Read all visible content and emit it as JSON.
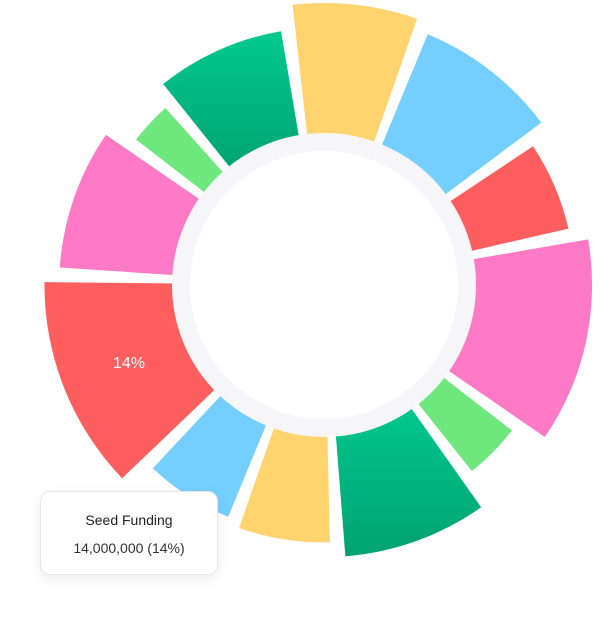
{
  "chart_data": {
    "type": "pie",
    "variant": "doughnut",
    "start_angle_deg": -8,
    "slices": [
      {
        "value": 8.5,
        "color": "#FFD36E"
      },
      {
        "value": 10,
        "color": "#74CFFF"
      },
      {
        "value": 7,
        "color": "#FF5E5E"
      },
      {
        "value": 14,
        "color": "#FF7AC6"
      },
      {
        "value": 5,
        "color": "#6EE87C"
      },
      {
        "value": 10,
        "color": "#00B17C"
      },
      {
        "value": 7,
        "color": "#FFD36E"
      },
      {
        "value": 7,
        "color": "#74CFFF"
      },
      {
        "value": 14,
        "color": "#FF5E5E",
        "label": "14%",
        "highlighted": true
      },
      {
        "value": 10,
        "color": "#FF7AC6"
      },
      {
        "value": 4,
        "color": "#6EE87C"
      },
      {
        "value": 9.5,
        "color": "#00B17C"
      }
    ],
    "radial_scale_relative": [
      1.0,
      0.87,
      0.62,
      0.83,
      0.46,
      0.88,
      0.7,
      0.62,
      0.97,
      0.79,
      0.46,
      0.7
    ],
    "tooltip": {
      "title": "Seed Funding",
      "value": "14,000,000 (14%)"
    }
  }
}
